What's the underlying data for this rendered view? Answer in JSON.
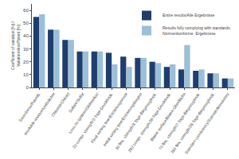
{
  "chart_data": {
    "type": "bar",
    "categories": [
      "Soundness/Raumb.",
      "Insoluble residue/Unlöslicher",
      "Chloride/Chlorid",
      "Sulfate/Sulfat",
      "Loss on ignition/Glühverlust",
      "2d compr. strength/2-Tage-Druckfestk.",
      "Final setting time/Erstarrungsende",
      "Initial setting time/Erstarrungsbeginn",
      "3d flex. strength/3-Tage-Biegezugfestk.",
      "28d compr. strength/28-Tage-Druckfestk.",
      "Blaine surface/Blaine-Oberfläche",
      "7d flex. strength/7-Tage-Biegezugfestk.",
      "28d flex. strength/28-Tage-Biegezugfestk.",
      "Standard consistency/Standardkonsistenz"
    ],
    "series": [
      {
        "name": "Entire results/Alle Ergebnisse",
        "color": "#1F3E6E",
        "values": [
          55,
          45,
          37,
          28,
          28,
          27,
          24,
          23,
          20,
          16,
          14,
          13,
          11,
          7
        ]
      },
      {
        "name": "Results fully complying with standards,\nNormenkonforme  Ergebnisse",
        "color": "#9BBFD8",
        "values": [
          57,
          45,
          37,
          28,
          28,
          18,
          16,
          23,
          19,
          18,
          33,
          14,
          11,
          7
        ]
      }
    ],
    "ylabel": "Coefficient of variation [%] /\nVariationskoeffizient [%]",
    "ylim": [
      0,
      65
    ],
    "yticks": [
      0,
      10,
      20,
      30,
      40,
      50,
      60
    ],
    "legend": "upper right",
    "grid": false
  }
}
